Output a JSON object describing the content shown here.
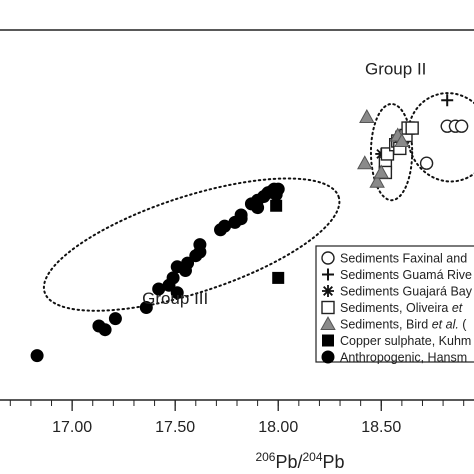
{
  "chart_data": {
    "type": "scatter",
    "xlabel": "206Pb/204Pb",
    "xlabel_sup1": "206",
    "xlabel_base1": "Pb/",
    "xlabel_sup2": "204",
    "xlabel_base2": "Pb",
    "xlim": [
      16.65,
      18.95
    ],
    "ylim": [
      0,
      1
    ],
    "x_ticks": [
      {
        "value": 17.0,
        "label": "17.00"
      },
      {
        "value": 17.5,
        "label": "17.50"
      },
      {
        "value": 18.0,
        "label": "18.00"
      },
      {
        "value": 18.5,
        "label": "18.50"
      }
    ],
    "grid": false,
    "legend_placement": "right",
    "group_annotations": [
      {
        "label": "Group II",
        "x": 18.57,
        "y": 0.88
      },
      {
        "label": "Group III",
        "x": 17.5,
        "y": 0.26
      }
    ],
    "group_ellipses": [
      {
        "name": "group-ii",
        "cx": 18.55,
        "cy": 0.67,
        "rx": 0.1,
        "ry": 0.13,
        "rotate": 0
      },
      {
        "name": "group-iii",
        "cx": 17.58,
        "cy": 0.42,
        "rx": 0.75,
        "ry": 0.13,
        "rotate": -18
      },
      {
        "name": "group-i",
        "cx": 18.83,
        "cy": 0.71,
        "rx": 0.2,
        "ry": 0.12,
        "rotate": -15
      }
    ],
    "series": [
      {
        "name": "Sediments Faxinal and",
        "label_parts": [
          {
            "text": "Sediments Faxinal and",
            "italic": false
          }
        ],
        "marker": "circle-open",
        "points": [
          [
            18.82,
            0.74
          ],
          [
            18.86,
            0.74
          ],
          [
            18.89,
            0.74
          ],
          [
            18.72,
            0.64
          ]
        ]
      },
      {
        "name": "Sediments Guamá Rive",
        "label_parts": [
          {
            "text": "Sediments Guamá Rive",
            "italic": false
          }
        ],
        "marker": "plus",
        "points": [
          [
            18.82,
            0.81
          ]
        ]
      },
      {
        "name": "Sediments Guajará Bay",
        "label_parts": [
          {
            "text": "Sediments Guajará Bay",
            "italic": false
          }
        ],
        "marker": "asterisk",
        "points": [
          [
            18.5,
            0.665
          ]
        ]
      },
      {
        "name": "Sediments, Oliveira et",
        "label_parts": [
          {
            "text": "Sediments, Oliveira ",
            "italic": false
          },
          {
            "text": "et",
            "italic": true
          }
        ],
        "marker": "square-open",
        "points": [
          [
            18.52,
            0.64
          ],
          [
            18.53,
            0.665
          ],
          [
            18.57,
            0.69
          ],
          [
            18.58,
            0.7
          ],
          [
            18.6,
            0.71
          ],
          [
            18.62,
            0.715
          ],
          [
            18.63,
            0.735
          ],
          [
            18.65,
            0.735
          ],
          [
            18.52,
            0.615
          ],
          [
            18.59,
            0.68
          ]
        ]
      },
      {
        "name": "Sediments, Bird et al. (",
        "label_parts": [
          {
            "text": "Sediments, Bird ",
            "italic": false
          },
          {
            "text": "et al.",
            "italic": true
          },
          {
            "text": " (",
            "italic": false
          }
        ],
        "marker": "triangle",
        "points": [
          [
            18.43,
            0.765
          ],
          [
            18.42,
            0.64
          ],
          [
            18.48,
            0.59
          ],
          [
            18.5,
            0.615
          ],
          [
            18.58,
            0.715
          ],
          [
            18.6,
            0.7
          ]
        ]
      },
      {
        "name": "Copper sulphate, Kuhm",
        "label_parts": [
          {
            "text": "Copper sulphate, Kuhm",
            "italic": false
          }
        ],
        "marker": "square-filled",
        "points": [
          [
            17.99,
            0.525
          ],
          [
            18.0,
            0.33
          ]
        ]
      },
      {
        "name": "Anthropogenic, Hansm",
        "label_parts": [
          {
            "text": "Anthropogenic, Hansm",
            "italic": false
          }
        ],
        "marker": "circle-filled",
        "points": [
          [
            16.83,
            0.12
          ],
          [
            17.13,
            0.2
          ],
          [
            17.16,
            0.19
          ],
          [
            17.21,
            0.22
          ],
          [
            17.36,
            0.25
          ],
          [
            17.42,
            0.3
          ],
          [
            17.47,
            0.31
          ],
          [
            17.49,
            0.33
          ],
          [
            17.51,
            0.36
          ],
          [
            17.51,
            0.29
          ],
          [
            17.55,
            0.35
          ],
          [
            17.56,
            0.37
          ],
          [
            17.6,
            0.39
          ],
          [
            17.62,
            0.42
          ],
          [
            17.62,
            0.4
          ],
          [
            17.72,
            0.46
          ],
          [
            17.74,
            0.47
          ],
          [
            17.79,
            0.48
          ],
          [
            17.82,
            0.5
          ],
          [
            17.82,
            0.49
          ],
          [
            17.87,
            0.53
          ],
          [
            17.9,
            0.54
          ],
          [
            17.93,
            0.55
          ],
          [
            17.95,
            0.56
          ],
          [
            17.97,
            0.565
          ],
          [
            17.99,
            0.555
          ],
          [
            17.98,
            0.57
          ],
          [
            18.0,
            0.57
          ],
          [
            17.9,
            0.52
          ]
        ]
      }
    ]
  }
}
